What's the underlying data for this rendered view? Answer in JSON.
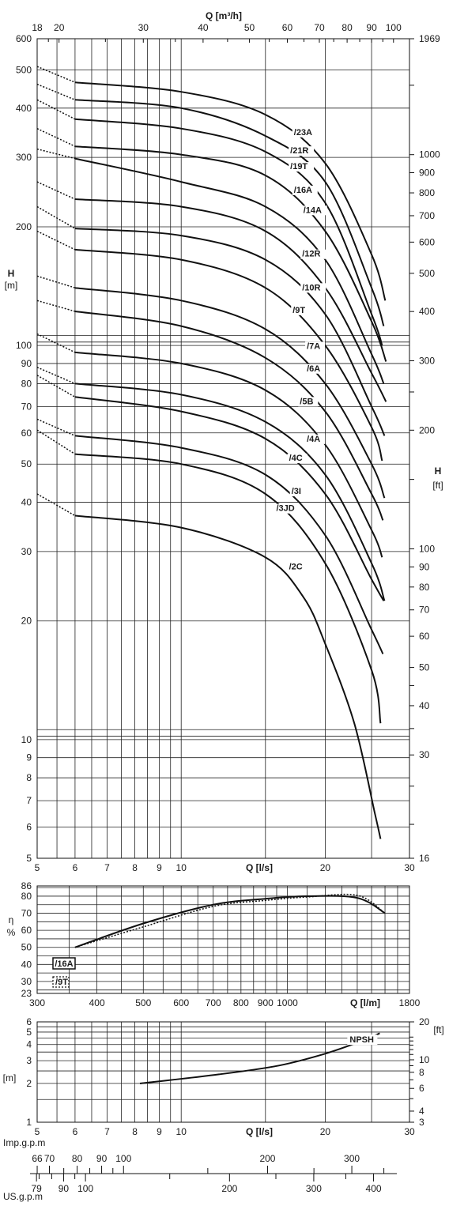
{
  "chart_data": [
    {
      "name": "head",
      "type": "line",
      "x_scale": "log",
      "y_scale": "log",
      "xlim": [
        5,
        30
      ],
      "ylim": [
        5,
        600
      ],
      "xlabel": "Q [l/s]",
      "ylabel": "H [m]",
      "y2label": "H [ft]",
      "x2label": "Q [m³/h]",
      "x_ticks": [
        "5",
        "6",
        "7",
        "8",
        "9",
        "10",
        "20",
        "30"
      ],
      "y_ticks": [
        "5",
        "6",
        "7",
        "8",
        "9",
        "10",
        "20",
        "30",
        "40",
        "50",
        "60",
        "70",
        "80",
        "90",
        "100",
        "200",
        "300",
        "400",
        "500",
        "600"
      ],
      "y2_ticks": [
        "16",
        "30",
        "40",
        "50",
        "60",
        "70",
        "80",
        "90",
        "100",
        "200",
        "300",
        "400",
        "500",
        "600",
        "700",
        "800",
        "900",
        "1000",
        "1969"
      ],
      "x2_ticks": [
        "18",
        "20",
        "30",
        "40",
        "50",
        "60",
        "70",
        "80",
        "90",
        "100"
      ],
      "series": [
        {
          "name": "/23A",
          "x": [
            5,
            6,
            10,
            15,
            20,
            25,
            26.7
          ],
          "y": [
            510,
            465,
            440,
            385,
            290,
            170,
            130
          ],
          "label_at": [
            17.2,
            342
          ]
        },
        {
          "name": "/21R",
          "x": [
            5,
            6,
            10,
            15,
            20,
            25,
            26.5
          ],
          "y": [
            460,
            420,
            400,
            340,
            260,
            140,
            112
          ],
          "label_at": [
            16.9,
            307
          ]
        },
        {
          "name": "/19T",
          "x": [
            5,
            6,
            10,
            15,
            20,
            25,
            26.3
          ],
          "y": [
            420,
            375,
            355,
            310,
            230,
            120,
            100
          ],
          "label_at": [
            16.9,
            280
          ]
        },
        {
          "name": "/16A",
          "x": [
            5,
            6,
            10,
            15,
            20,
            25,
            26.8
          ],
          "y": [
            355,
            320,
            305,
            270,
            195,
            115,
            91
          ],
          "label_at": [
            17.2,
            244
          ]
        },
        {
          "name": "/14A",
          "x": [
            5,
            6,
            10,
            15,
            20,
            25,
            26.5
          ],
          "y": [
            315,
            298,
            260,
            225,
            165,
            95,
            80
          ],
          "label_at": [
            18,
            217
          ]
        },
        {
          "name": "/12R",
          "x": [
            5,
            6,
            10,
            15,
            20,
            25,
            26.8
          ],
          "y": [
            260,
            235,
            225,
            195,
            140,
            85,
            72
          ],
          "label_at": [
            17.9,
            168
          ]
        },
        {
          "name": "/10R",
          "x": [
            5,
            6,
            10,
            15,
            20,
            25,
            26.6
          ],
          "y": [
            225,
            198,
            190,
            165,
            120,
            70,
            59
          ],
          "label_at": [
            17.9,
            138
          ]
        },
        {
          "name": "/9T",
          "x": [
            5,
            6,
            10,
            15,
            20,
            25,
            26.3
          ],
          "y": [
            195,
            175,
            165,
            140,
            100,
            62,
            51
          ],
          "label_at": [
            17.1,
            121
          ]
        },
        {
          "name": "/7A",
          "x": [
            5,
            6,
            10,
            15,
            20,
            25,
            26.6
          ],
          "y": [
            150,
            140,
            130,
            110,
            80,
            50,
            41
          ],
          "label_at": [
            18.3,
            98
          ]
        },
        {
          "name": "/6A",
          "x": [
            5,
            6,
            10,
            15,
            20,
            25,
            26.4
          ],
          "y": [
            130,
            122,
            112,
            93,
            68,
            42,
            36
          ],
          "label_at": [
            18.3,
            86
          ]
        },
        {
          "name": "/5B",
          "x": [
            5,
            6,
            10,
            15,
            20,
            25,
            26.3
          ],
          "y": [
            107,
            96,
            90,
            77,
            56,
            34,
            29
          ],
          "label_at": [
            17.7,
            71
          ]
        },
        {
          "name": "/4A",
          "x": [
            5,
            6,
            10,
            15,
            20,
            25,
            26.6
          ],
          "y": [
            88,
            80,
            75,
            64,
            47,
            28,
            22.5
          ],
          "label_at": [
            18.3,
            57
          ]
        },
        {
          "name": "/4C",
          "x": [
            5,
            6,
            10,
            15,
            20,
            25,
            26.5
          ],
          "y": [
            84,
            74,
            68,
            58,
            42,
            25.5,
            22.5
          ],
          "label_at": [
            16.8,
            51
          ]
        },
        {
          "name": "/3I",
          "x": [
            5,
            6,
            10,
            15,
            20,
            25,
            26.4
          ],
          "y": [
            65,
            59,
            55,
            47,
            33,
            19,
            16.5
          ],
          "label_at": [
            17,
            42
          ]
        },
        {
          "name": "/3JD",
          "x": [
            5,
            6,
            10,
            15,
            20,
            25,
            26.1
          ],
          "y": [
            61,
            53,
            50,
            42,
            28,
            15,
            11
          ],
          "label_at": [
            15.8,
            38
          ]
        },
        {
          "name": "/2C",
          "x": [
            5,
            6,
            10,
            15,
            18,
            20,
            23,
            25.4,
            26.1
          ],
          "y": [
            42,
            37,
            34.5,
            29,
            23,
            17.5,
            11,
            6.5,
            5.6
          ],
          "label_at": [
            16.8,
            27
          ]
        }
      ]
    },
    {
      "name": "efficiency",
      "type": "line",
      "x_scale": "log",
      "xlim": [
        300,
        1800
      ],
      "ylim": [
        23,
        86
      ],
      "xlabel": "Q [l/m]",
      "ylabel": "η %",
      "x_ticks": [
        "300",
        "400",
        "500",
        "600",
        "700",
        "800",
        "900",
        "1000",
        "1800"
      ],
      "y_ticks": [
        "23",
        "30",
        "40",
        "50",
        "60",
        "70",
        "80",
        "86"
      ],
      "series": [
        {
          "name": "/16A",
          "x": [
            360,
            500,
            700,
            900,
            1100,
            1400,
            1600
          ],
          "y": [
            50,
            64,
            75,
            78.5,
            80,
            79,
            70
          ]
        },
        {
          "name": "/9T",
          "x": [
            360,
            500,
            700,
            900,
            1100,
            1400,
            1600
          ],
          "y": [
            50,
            62,
            74,
            77.5,
            79.5,
            80.5,
            70
          ]
        }
      ]
    },
    {
      "name": "npsh",
      "type": "line",
      "x_scale": "log",
      "y_scale": "log",
      "xlim": [
        5,
        30
      ],
      "ylim": [
        1,
        6
      ],
      "xlabel": "Q [l/s]",
      "ylabel": "[m]",
      "y2label": "[ft]",
      "x_ticks": [
        "5",
        "6",
        "7",
        "8",
        "9",
        "10",
        "20",
        "30"
      ],
      "y_ticks": [
        "1",
        "2",
        "3",
        "4",
        "5",
        "6"
      ],
      "y2_ticks": [
        "3",
        "4",
        "6",
        "8",
        "10",
        "20"
      ],
      "series": [
        {
          "name": "NPSH",
          "x": [
            8.2,
            12,
            16,
            20,
            24,
            26
          ],
          "y": [
            2.0,
            2.35,
            2.75,
            3.4,
            4.3,
            4.9
          ]
        }
      ]
    }
  ],
  "imp_gpm": {
    "label": "Imp.g.p.m",
    "ticks": [
      "66",
      "70",
      "80",
      "90",
      "100",
      "200",
      "300"
    ]
  },
  "us_gpm": {
    "label": "US.g.p.m",
    "ticks": [
      "79",
      "90",
      "100",
      "200",
      "300",
      "400"
    ]
  }
}
